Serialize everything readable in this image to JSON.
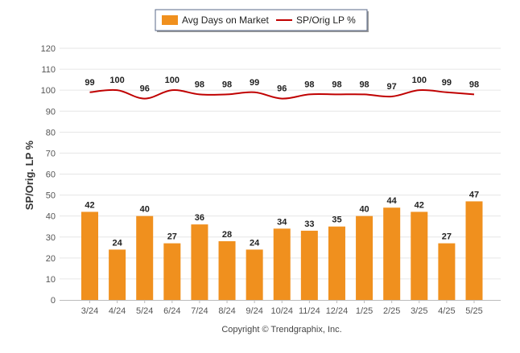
{
  "chart_data": {
    "type": "bar",
    "categories": [
      "3/24",
      "4/24",
      "5/24",
      "6/24",
      "7/24",
      "8/24",
      "9/24",
      "10/24",
      "11/24",
      "12/24",
      "1/25",
      "2/25",
      "3/25",
      "4/25",
      "5/25"
    ],
    "series": [
      {
        "name": "Avg Days on Market",
        "type": "bar",
        "color": "#f0901e",
        "values": [
          42,
          24,
          40,
          27,
          36,
          28,
          24,
          34,
          33,
          35,
          40,
          44,
          42,
          27,
          47
        ]
      },
      {
        "name": "SP/Orig LP %",
        "type": "line",
        "color": "#c00000",
        "values": [
          99,
          100,
          96,
          100,
          98,
          98,
          99,
          96,
          98,
          98,
          98,
          97,
          100,
          99,
          98
        ]
      }
    ],
    "ylabel": "SP/Orig. LP %",
    "ylim": [
      0,
      120
    ],
    "yticks": [
      0,
      10,
      20,
      30,
      40,
      50,
      60,
      70,
      80,
      90,
      100,
      110,
      120
    ],
    "grid": true,
    "legend_position": "top-center"
  },
  "footer": {
    "copyright": "Copyright © Trendgraphix, Inc."
  }
}
